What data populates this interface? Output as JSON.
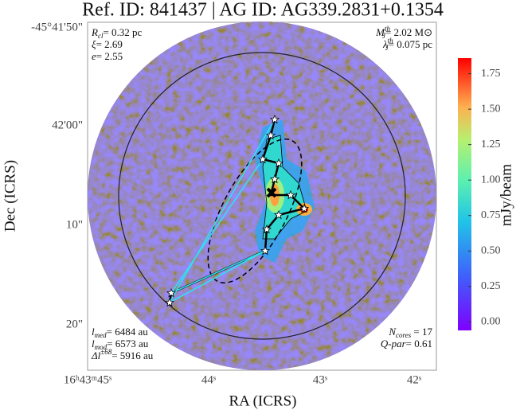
{
  "chart_data": {
    "type": "image",
    "title": "Ref. ID: 841437 | AG ID: AG339.2831+0.1354",
    "xlabel": "RA (ICRS)",
    "ylabel": "Dec (ICRS)",
    "colorbar_label": "mJy/beam",
    "clim": [
      -0.06,
      1.86
    ],
    "cticks": [
      {
        "value": 0,
        "label": "0.00"
      },
      {
        "value": 0.25,
        "label": "0.25"
      },
      {
        "value": 0.5,
        "label": "0.50"
      },
      {
        "value": 0.75,
        "label": "0.75"
      },
      {
        "value": 1,
        "label": "1.00"
      },
      {
        "value": 1.25,
        "label": "1.25"
      },
      {
        "value": 1.5,
        "label": "1.50"
      },
      {
        "value": 1.75,
        "label": "1.75"
      }
    ],
    "xticks": [
      "16ʰ43ᵐ45ˢ",
      "44ˢ",
      "43ˢ",
      "42ˢ"
    ],
    "yticks": [
      "-45°41'50\"",
      "42'00\"",
      "10\"",
      "20\""
    ],
    "annotations": {
      "top_left": [
        {
          "main": "R",
          "sub": "cl",
          "rest": "= 0.32 pc"
        },
        {
          "main": "ξ",
          "rest": "= 2.69"
        },
        {
          "main": "e",
          "rest": "= 2.55"
        }
      ],
      "top_right": [
        {
          "main": "M",
          "sup": "th",
          "sub": "J",
          "rest": "= 2.02 M⊙"
        },
        {
          "main": "λ",
          "sup": "th",
          "sub": "J",
          "rest": "= 0.075 pc"
        }
      ],
      "bottom_left": [
        {
          "main": "l",
          "sub": "med",
          "rest": "= 6484 au"
        },
        {
          "main": "l",
          "sub": "mod",
          "rest": "= 6573 au"
        },
        {
          "main": "Δl",
          "sup": "±68",
          "rest": "= 5916 au"
        }
      ],
      "bottom_right": [
        {
          "main": "N",
          "sub": "cores",
          "rest": " = 17"
        },
        {
          "main": "Q-par",
          "rest": "= 0.61"
        }
      ]
    }
  }
}
